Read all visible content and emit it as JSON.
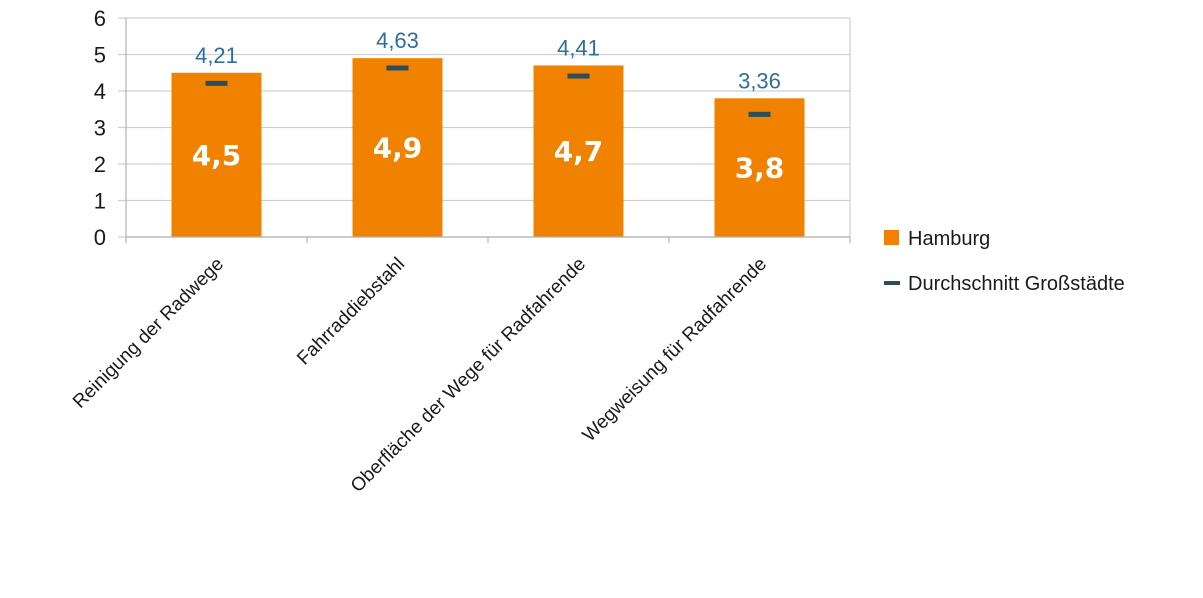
{
  "chart_data": {
    "type": "bar",
    "categories": [
      "Reinigung der Radwege",
      "Fahrraddiebstahl",
      "Oberfläche der Wege für Radfahrende",
      "Wegweisung für Radfahrende"
    ],
    "series": [
      {
        "name": "Hamburg",
        "type": "bar",
        "values": [
          4.5,
          4.9,
          4.7,
          3.8
        ],
        "value_labels": [
          "4,5",
          "4,9",
          "4,7",
          "3,8"
        ],
        "color": "#F08200"
      },
      {
        "name": "Durchschnitt Großstädte",
        "type": "marker",
        "values": [
          4.21,
          4.63,
          4.41,
          3.36
        ],
        "value_labels": [
          "4,21",
          "4,63",
          "4,41",
          "3,36"
        ],
        "color": "#2C4D5A",
        "label_color": "#2E6E9E"
      }
    ],
    "ylim": [
      0,
      6
    ],
    "yticks": [
      "0",
      "1",
      "2",
      "3",
      "4",
      "5",
      "6"
    ],
    "grid": true,
    "legend_position": "right"
  }
}
